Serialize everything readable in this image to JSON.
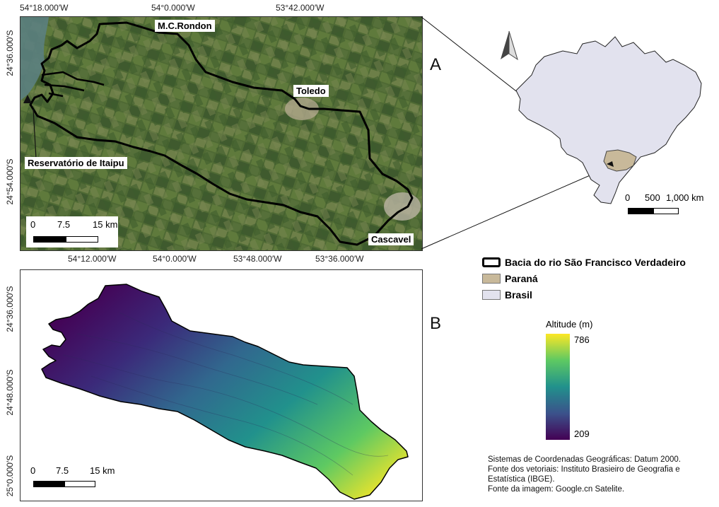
{
  "panel_a": {
    "letter": "A",
    "top_coords": [
      "54°18.000′W",
      "54°0.000′W",
      "53°42.000′W"
    ],
    "bottom_coords": [
      "54°12.000′W",
      "54°0.000′W",
      "53°48.000′W",
      "53°36.000′W"
    ],
    "left_coords": [
      "24°36.000′S",
      "24°54.000′S"
    ],
    "places": {
      "mc_rondon": "M.C.Rondon",
      "toledo": "Toledo",
      "reservatorio": "Reservatório de Itaipu",
      "cascavel": "Cascavel"
    },
    "scale": {
      "labels": [
        "0",
        "7.5",
        "15 km"
      ]
    }
  },
  "panel_b": {
    "letter": "B",
    "left_coords": [
      "24°36.000′S",
      "24°48.000′S",
      "25°0.000′S"
    ],
    "scale": {
      "labels": [
        "0",
        "7.5",
        "15 km"
      ]
    }
  },
  "inset": {
    "scale": {
      "labels": [
        "0",
        "500",
        "1,000 km"
      ]
    }
  },
  "legend": {
    "items": [
      {
        "label": "Bacia do rio São Francisco Verdadeiro",
        "color": "#ffffff",
        "border": "#000000"
      },
      {
        "label": "Paraná",
        "color": "#c8b99a",
        "border": "#777777"
      },
      {
        "label": "Brasil",
        "color": "#e2e2ee",
        "border": "#777777"
      }
    ]
  },
  "altitude": {
    "title": "Altitude (m)",
    "max": "786",
    "min": "209",
    "colors": [
      "#fde725",
      "#5ec962",
      "#21918c",
      "#3b528b",
      "#440154"
    ]
  },
  "notes": [
    "Sistemas de Coordenadas Geográficas: Datum 2000.",
    "Fonte dos vetoriais: Instituto Brasieiro de Geografia e Estatística (IBGE).",
    "Fonte da imagem: Google.cn Satelite."
  ]
}
